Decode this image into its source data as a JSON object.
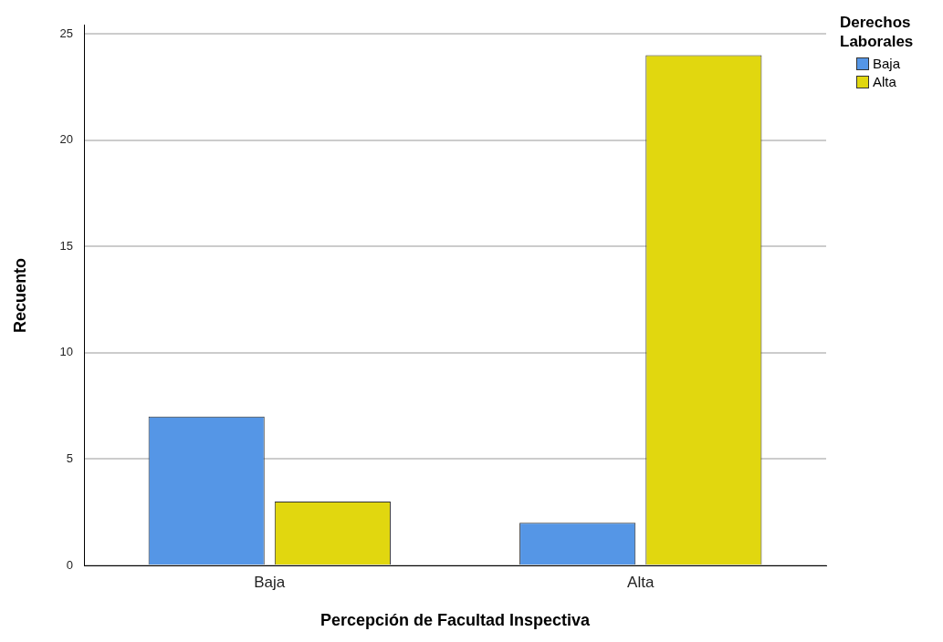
{
  "chart_data": {
    "type": "bar",
    "xlabel": "Percepción de Facultad Inspectiva",
    "ylabel": "Recuento",
    "legend_title": "Derechos Laborales",
    "categories": [
      "Baja",
      "Alta"
    ],
    "series": [
      {
        "name": "Baja",
        "color": "#5596e6",
        "values": [
          7,
          2
        ]
      },
      {
        "name": "Alta",
        "color": "#e1d70f",
        "values": [
          3,
          24
        ]
      }
    ],
    "ylim": [
      0,
      25.4
    ],
    "yticks": [
      0,
      5,
      10,
      15,
      20,
      25
    ],
    "grid": "y",
    "legend": "top right"
  }
}
